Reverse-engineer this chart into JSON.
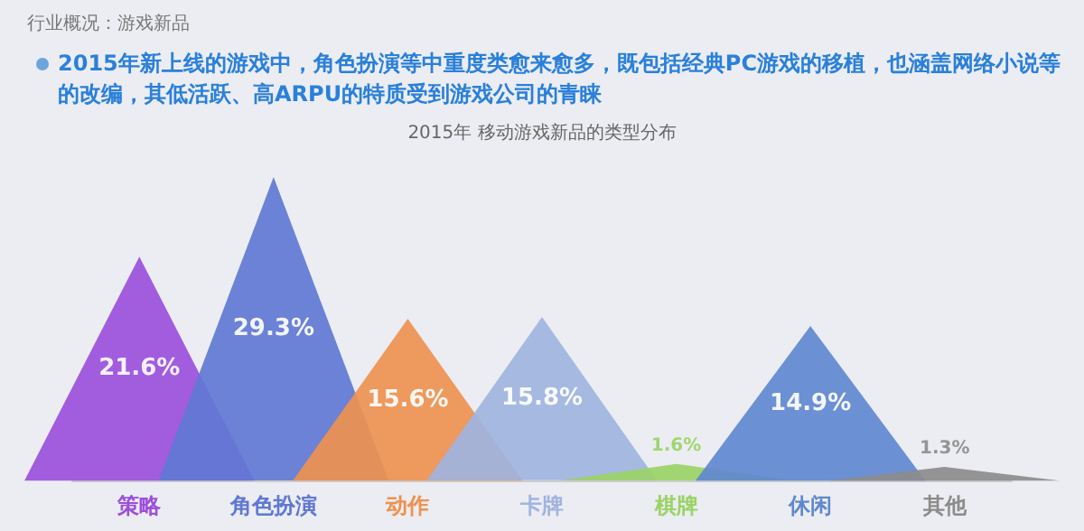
{
  "chart_data": {
    "type": "other",
    "title": "2015年 移动游戏新品的类型分布",
    "subtitle": "2015年新上线的游戏中，角色扮演等中重度类愈来愈多，既包括经典PC游戏的移植，也涵盖网络小说等的改编，其低活跃、高ARPU的特质受到游戏公司的青睐",
    "annotations": [
      "行业概况：游戏新品"
    ],
    "categories": [
      "策略",
      "角色扮演",
      "动作",
      "卡牌",
      "棋牌",
      "休闲",
      "其他"
    ],
    "values": [
      21.6,
      29.3,
      15.6,
      15.8,
      1.6,
      14.9,
      1.3
    ],
    "value_labels": [
      "21.6%",
      "29.3%",
      "15.6%",
      "15.8%",
      "1.6%",
      "14.9%",
      "1.3%"
    ],
    "colors": [
      "#9b4fdc",
      "#5f78d4",
      "#ee9150",
      "#a0b4e0",
      "#9ad366",
      "#5f88d0",
      "#8c8c8c"
    ]
  }
}
